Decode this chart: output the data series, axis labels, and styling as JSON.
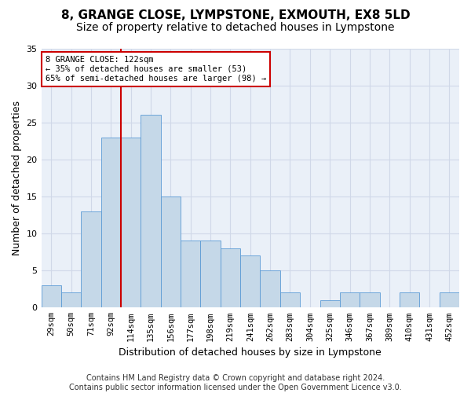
{
  "title1": "8, GRANGE CLOSE, LYMPSTONE, EXMOUTH, EX8 5LD",
  "title2": "Size of property relative to detached houses in Lympstone",
  "xlabel": "Distribution of detached houses by size in Lympstone",
  "ylabel": "Number of detached properties",
  "bar_labels": [
    "29sqm",
    "50sqm",
    "71sqm",
    "92sqm",
    "114sqm",
    "135sqm",
    "156sqm",
    "177sqm",
    "198sqm",
    "219sqm",
    "241sqm",
    "262sqm",
    "283sqm",
    "304sqm",
    "325sqm",
    "346sqm",
    "367sqm",
    "389sqm",
    "410sqm",
    "431sqm",
    "452sqm"
  ],
  "bar_values": [
    3,
    2,
    13,
    23,
    23,
    26,
    15,
    9,
    9,
    8,
    7,
    5,
    2,
    0,
    1,
    2,
    2,
    0,
    2,
    0,
    2
  ],
  "bar_color": "#c5d8e8",
  "bar_edge_color": "#5b9bd5",
  "highlight_line_xdata": 3.5,
  "highlight_color": "#cc0000",
  "annotation_line1": "8 GRANGE CLOSE: 122sqm",
  "annotation_line2": "← 35% of detached houses are smaller (53)",
  "annotation_line3": "65% of semi-detached houses are larger (98) →",
  "annotation_box_color": "#cc0000",
  "ylim": [
    0,
    35
  ],
  "yticks": [
    0,
    5,
    10,
    15,
    20,
    25,
    30,
    35
  ],
  "grid_color": "#d0d8e8",
  "background_color": "#eaf0f8",
  "footer": "Contains HM Land Registry data © Crown copyright and database right 2024.\nContains public sector information licensed under the Open Government Licence v3.0.",
  "title1_fontsize": 11,
  "title2_fontsize": 10,
  "ylabel_fontsize": 9,
  "xlabel_fontsize": 9,
  "tick_fontsize": 7.5,
  "footer_fontsize": 7
}
